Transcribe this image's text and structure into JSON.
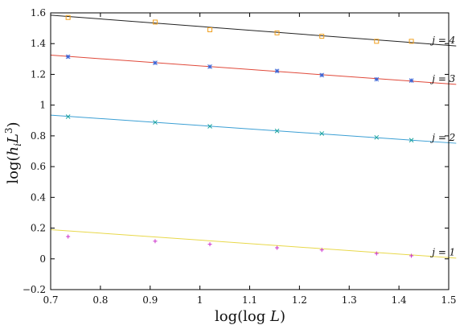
{
  "chart_data": {
    "type": "scatter",
    "title": "",
    "xlabel": "log(log L)",
    "ylabel": "log(h_i L^3)",
    "xlim": [
      0.7,
      1.5
    ],
    "ylim": [
      -0.2,
      1.6
    ],
    "x_ticks": [
      0.7,
      0.8,
      0.9,
      1,
      1.1,
      1.2,
      1.3,
      1.4,
      1.5
    ],
    "y_ticks": [
      -0.2,
      0,
      0.2,
      0.4,
      0.6,
      0.8,
      1,
      1.2,
      1.4,
      1.6
    ],
    "x_tick_labels": [
      "0.7",
      "0.8",
      "0.9",
      "1",
      "1.1",
      "1.2",
      "1.3",
      "1.4",
      "1.5"
    ],
    "y_tick_labels": [
      "−0.2",
      "0",
      "0.2",
      "0.4",
      "0.6",
      "0.8",
      "1",
      "1.2",
      "1.4",
      "1.6"
    ],
    "grid": false,
    "series": [
      {
        "name": "j = 1",
        "marker": "plus",
        "point_color": "#cc33cc",
        "fit_color": "#e8d84a",
        "x": [
          0.735,
          0.91,
          1.02,
          1.155,
          1.245,
          1.355,
          1.425
        ],
        "y": [
          0.145,
          0.115,
          0.095,
          0.072,
          0.058,
          0.035,
          0.02
        ],
        "fit": [
          [
            0.7,
            0.19
          ],
          [
            1.515,
            0.005
          ]
        ]
      },
      {
        "name": "j = 2",
        "marker": "cross",
        "point_color": "#1aa39c",
        "fit_color": "#3b9fd4",
        "x": [
          0.735,
          0.91,
          1.02,
          1.155,
          1.245,
          1.355,
          1.425
        ],
        "y": [
          0.925,
          0.888,
          0.862,
          0.832,
          0.815,
          0.79,
          0.772
        ],
        "fit": [
          [
            0.7,
            0.935
          ],
          [
            1.515,
            0.752
          ]
        ]
      },
      {
        "name": "j = 3",
        "marker": "star",
        "point_color": "#3a64d6",
        "fit_color": "#e0493a",
        "x": [
          0.735,
          0.91,
          1.02,
          1.155,
          1.245,
          1.355,
          1.425
        ],
        "y": [
          1.315,
          1.275,
          1.25,
          1.222,
          1.195,
          1.168,
          1.16
        ],
        "fit": [
          [
            0.7,
            1.325
          ],
          [
            1.515,
            1.135
          ]
        ]
      },
      {
        "name": "j = 4",
        "marker": "square",
        "point_color": "#f0a020",
        "fit_color": "#222222",
        "x": [
          0.735,
          0.91,
          1.02,
          1.155,
          1.245,
          1.355,
          1.425
        ],
        "y": [
          1.57,
          1.54,
          1.49,
          1.47,
          1.448,
          1.415,
          1.415
        ],
        "fit": [
          [
            0.7,
            1.585
          ],
          [
            1.515,
            1.385
          ]
        ]
      }
    ]
  }
}
